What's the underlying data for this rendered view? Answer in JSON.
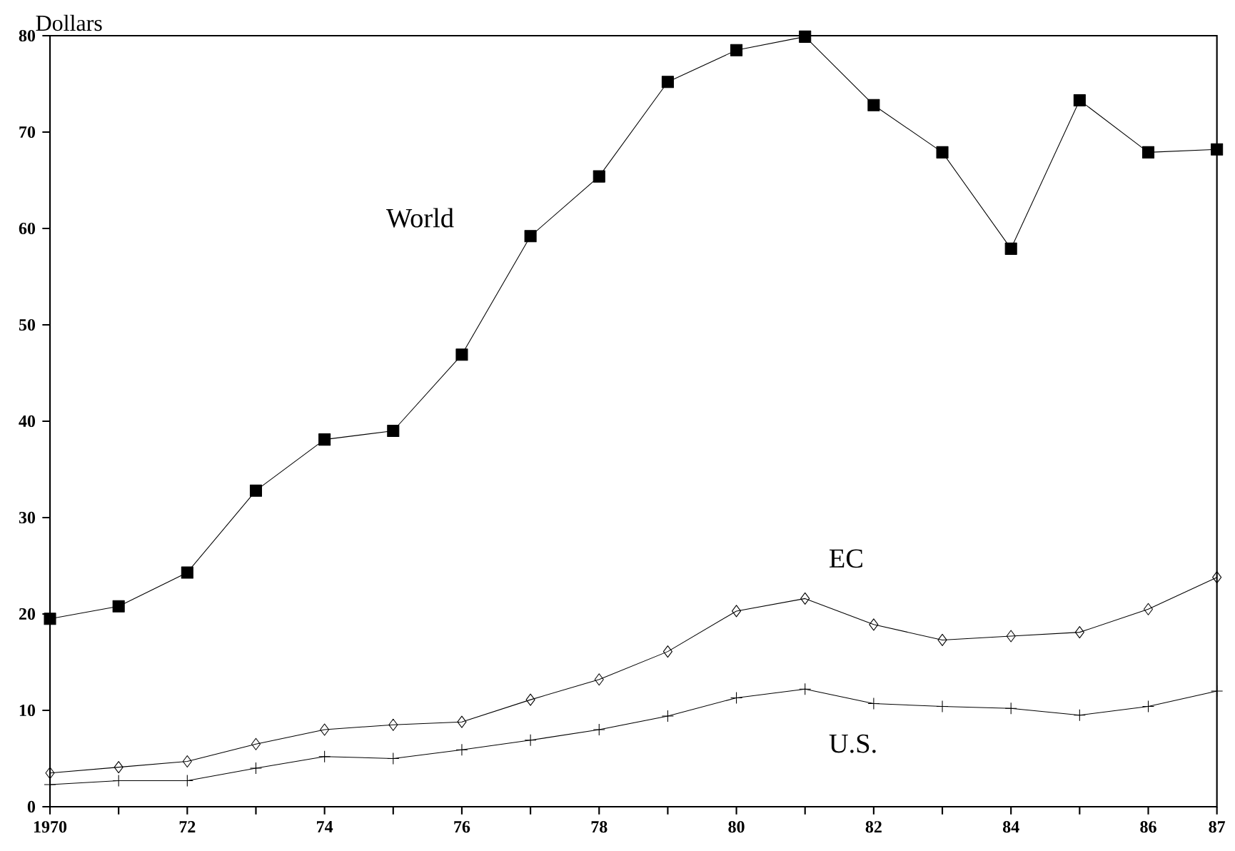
{
  "chart_data": {
    "type": "line",
    "ylabel": "Dollars",
    "x": [
      1970,
      1971,
      1972,
      1973,
      1974,
      1975,
      1976,
      1977,
      1978,
      1979,
      1980,
      1981,
      1982,
      1983,
      1984,
      1985,
      1986,
      1987
    ],
    "series": [
      {
        "name": "World",
        "color": "#000000",
        "marker": "square",
        "values": [
          19.5,
          20.8,
          24.3,
          32.8,
          38.1,
          39.0,
          46.9,
          59.2,
          65.4,
          75.2,
          78.5,
          79.9,
          72.8,
          67.9,
          57.9,
          73.3,
          67.9,
          68.2
        ]
      },
      {
        "name": "EC",
        "color": "#000000",
        "marker": "diamond",
        "values": [
          3.5,
          4.1,
          4.7,
          6.5,
          8.0,
          8.5,
          8.8,
          11.1,
          13.2,
          16.1,
          20.3,
          21.6,
          18.9,
          17.3,
          17.7,
          18.1,
          20.5,
          23.8
        ]
      },
      {
        "name": "U.S.",
        "color": "#000000",
        "marker": "cross",
        "values": [
          2.3,
          2.7,
          2.7,
          4.0,
          5.2,
          5.0,
          5.9,
          6.9,
          8.0,
          9.4,
          11.3,
          12.2,
          10.7,
          10.4,
          10.2,
          9.5,
          10.4,
          12.0
        ]
      }
    ],
    "xlim": [
      1970,
      1987
    ],
    "xticks": [
      {
        "value": 1970,
        "label": "1970"
      },
      {
        "value": 1971,
        "label": null
      },
      {
        "value": 1972,
        "label": "72"
      },
      {
        "value": 1973,
        "label": null
      },
      {
        "value": 1974,
        "label": "74"
      },
      {
        "value": 1975,
        "label": null
      },
      {
        "value": 1976,
        "label": "76"
      },
      {
        "value": 1977,
        "label": null
      },
      {
        "value": 1978,
        "label": "78"
      },
      {
        "value": 1979,
        "label": null
      },
      {
        "value": 1980,
        "label": "80"
      },
      {
        "value": 1981,
        "label": null
      },
      {
        "value": 1982,
        "label": "82"
      },
      {
        "value": 1983,
        "label": null
      },
      {
        "value": 1984,
        "label": "84"
      },
      {
        "value": 1985,
        "label": null
      },
      {
        "value": 1986,
        "label": "86"
      },
      {
        "value": 1987,
        "label": "87"
      }
    ],
    "ylim": [
      0,
      80
    ],
    "yticks": [
      0,
      10,
      20,
      30,
      40,
      50,
      60,
      70,
      80
    ],
    "grid": false,
    "line_style": "solid"
  }
}
